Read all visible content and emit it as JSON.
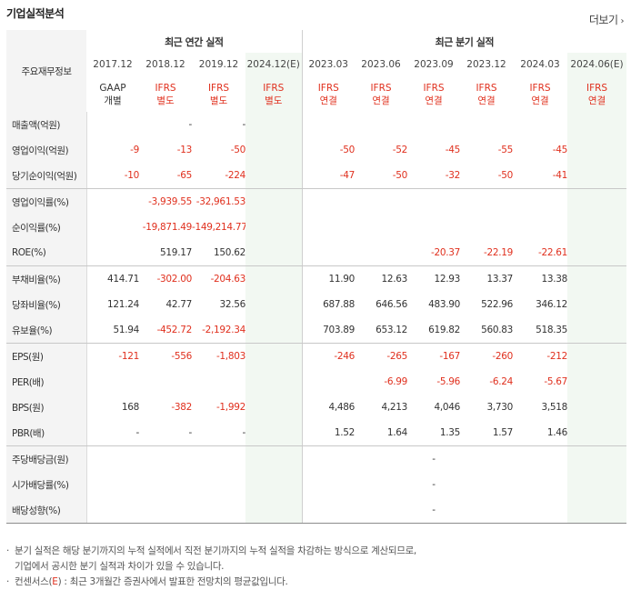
{
  "title": "기업실적분석",
  "more_label": "더보기",
  "header": {
    "row_label": "주요재무정보",
    "annual_group": "최근 연간 실적",
    "quarter_group": "최근 분기 실적",
    "periods": [
      "2017.12",
      "2018.12",
      "2019.12",
      "2024.12(E)",
      "2023.03",
      "2023.06",
      "2023.09",
      "2023.12",
      "2024.03",
      "2024.06(E)"
    ],
    "standards": [
      [
        "GAAP",
        "개별"
      ],
      [
        "IFRS",
        "별도"
      ],
      [
        "IFRS",
        "별도"
      ],
      [
        "IFRS",
        "별도"
      ],
      [
        "IFRS",
        "연결"
      ],
      [
        "IFRS",
        "연결"
      ],
      [
        "IFRS",
        "연결"
      ],
      [
        "IFRS",
        "연결"
      ],
      [
        "IFRS",
        "연결"
      ],
      [
        "IFRS",
        "연결"
      ]
    ]
  },
  "rows": [
    {
      "label": "매출액(억원)",
      "values": [
        "",
        "-",
        "-",
        "",
        "",
        "",
        "",
        "",
        "",
        ""
      ]
    },
    {
      "label": "영업이익(억원)",
      "values": [
        "-9",
        "-13",
        "-50",
        "",
        "-50",
        "-52",
        "-45",
        "-55",
        "-45",
        ""
      ]
    },
    {
      "label": "당기순이익(억원)",
      "values": [
        "-10",
        "-65",
        "-224",
        "",
        "-47",
        "-50",
        "-32",
        "-50",
        "-41",
        ""
      ]
    },
    {
      "label": "영업이익률(%)",
      "values": [
        "",
        "-3,939.55",
        "-32,961.53",
        "",
        "",
        "",
        "",
        "",
        "",
        ""
      ]
    },
    {
      "label": "순이익률(%)",
      "values": [
        "",
        "-19,871.49",
        "-149,214.77",
        "",
        "",
        "",
        "",
        "",
        "",
        ""
      ]
    },
    {
      "label": "ROE(%)",
      "values": [
        "",
        "519.17",
        "150.62",
        "",
        "",
        "",
        "-20.37",
        "-22.19",
        "-22.61",
        ""
      ]
    },
    {
      "label": "부채비율(%)",
      "values": [
        "414.71",
        "-302.00",
        "-204.63",
        "",
        "11.90",
        "12.63",
        "12.93",
        "13.37",
        "13.38",
        ""
      ]
    },
    {
      "label": "당좌비율(%)",
      "values": [
        "121.24",
        "42.77",
        "32.56",
        "",
        "687.88",
        "646.56",
        "483.90",
        "522.96",
        "346.12",
        ""
      ]
    },
    {
      "label": "유보율(%)",
      "values": [
        "51.94",
        "-452.72",
        "-2,192.34",
        "",
        "703.89",
        "653.12",
        "619.82",
        "560.83",
        "518.35",
        ""
      ]
    },
    {
      "label": "EPS(원)",
      "values": [
        "-121",
        "-556",
        "-1,803",
        "",
        "-246",
        "-265",
        "-167",
        "-260",
        "-212",
        ""
      ]
    },
    {
      "label": "PER(배)",
      "values": [
        "",
        "",
        "",
        "",
        "",
        "-6.99",
        "-5.96",
        "-6.24",
        "-5.67",
        ""
      ]
    },
    {
      "label": "BPS(원)",
      "values": [
        "168",
        "-382",
        "-1,992",
        "",
        "4,486",
        "4,213",
        "4,046",
        "3,730",
        "3,518",
        ""
      ]
    },
    {
      "label": "PBR(배)",
      "values": [
        "-",
        "-",
        "-",
        "",
        "1.52",
        "1.64",
        "1.35",
        "1.57",
        "1.46",
        ""
      ]
    },
    {
      "label": "주당배당금(원)",
      "values": [
        "",
        "",
        "",
        "",
        "",
        "",
        "-",
        "",
        "",
        ""
      ]
    },
    {
      "label": "시가배당률(%)",
      "values": [
        "",
        "",
        "",
        "",
        "",
        "",
        "-",
        "",
        "",
        ""
      ]
    },
    {
      "label": "배당성향(%)",
      "values": [
        "",
        "",
        "",
        "",
        "",
        "",
        "-",
        "",
        "",
        ""
      ]
    }
  ],
  "notes": {
    "line1": "분기 실적은 해당 분기까지의 누적 실적에서 직전 분기까지의 누적 실적을 차감하는 방식으로 계산되므로,",
    "line2": "기업에서 공시한 분기 실적과 차이가 있을 수 있습니다.",
    "line3_prefix": "컨센서스(",
    "line3_e": "E",
    "line3_suffix": ") : 최근 3개월간 증권사에서 발표한 전망치의 평균값입니다."
  },
  "colors": {
    "negative": "#e0301e",
    "forecast_bg": "#f2f8f2",
    "label_bg": "#f4f4f4"
  }
}
